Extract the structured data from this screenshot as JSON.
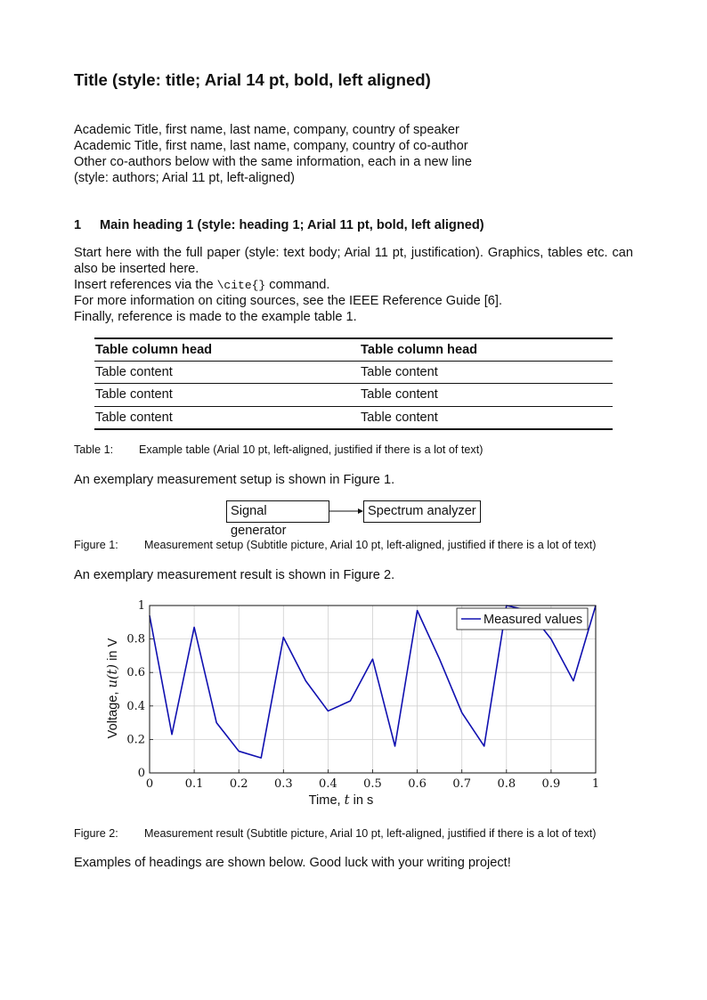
{
  "title": "Title (style: title; Arial 14 pt, bold, left aligned)",
  "authors": [
    "Academic Title, first name, last name, company, country of speaker",
    "Academic Title, first name, last name, company, country of co-author",
    "Other co-authors below with the same information, each in a new line",
    "(style: authors; Arial 11 pt, left-aligned)"
  ],
  "heading1": {
    "number": "1",
    "text": "Main heading 1 (style: heading 1; Arial 11 pt, bold, left aligned)"
  },
  "body": {
    "line1": "Start here with the full paper (style: text body; Arial 11 pt, justification). Graphics, tables etc. can",
    "line2": "also be inserted here.",
    "line3_pre": "Insert references via the ",
    "line3_code": "\\cite{}",
    "line3_post": " command.",
    "line4": "For more information on citing sources, see the IEEE Reference Guide [6].",
    "line5": "Finally, reference is made to the example table 1."
  },
  "table": {
    "headers": [
      "Table column head",
      "Table column head"
    ],
    "rows": [
      [
        "Table content",
        "Table content"
      ],
      [
        "Table content",
        "Table content"
      ],
      [
        "Table content",
        "Table content"
      ]
    ],
    "caption_label": "Table 1:",
    "caption": "Example table (Arial 10 pt, left-aligned, justified if there is a lot of text)"
  },
  "para_fig1": "An exemplary measurement setup is shown in Figure 1.",
  "diagram": {
    "box1": "Signal generator",
    "box2": "Spectrum analyzer"
  },
  "fig1_caption_label": "Figure 1:",
  "fig1_caption": "Measurement setup (Subtitle picture, Arial 10 pt, left-aligned, justified if there is a lot of text)",
  "para_fig2": "An exemplary measurement result is shown in Figure 2.",
  "chart_data": {
    "type": "line",
    "xlabel_pre": "Time, ",
    "xlabel_var": "t",
    "xlabel_post": " in s",
    "ylabel_pre": "Voltage, ",
    "ylabel_var": "u(t)",
    "ylabel_post": " in V",
    "xlim": [
      0,
      1
    ],
    "ylim": [
      0,
      1
    ],
    "xticks": [
      "0",
      "0.1",
      "0.2",
      "0.3",
      "0.4",
      "0.5",
      "0.6",
      "0.7",
      "0.8",
      "0.9",
      "1"
    ],
    "yticks": [
      "0",
      "0.2",
      "0.4",
      "0.6",
      "0.8",
      "1"
    ],
    "grid": true,
    "legend_position": "top-right",
    "series": [
      {
        "name": "Measured values",
        "color": "#1010b0",
        "x": [
          0,
          0.05,
          0.1,
          0.15,
          0.2,
          0.25,
          0.3,
          0.35,
          0.4,
          0.45,
          0.5,
          0.55,
          0.6,
          0.65,
          0.7,
          0.75,
          0.8,
          0.85,
          0.9,
          0.95,
          1
        ],
        "y": [
          0.94,
          0.23,
          0.87,
          0.3,
          0.13,
          0.09,
          0.81,
          0.55,
          0.37,
          0.43,
          0.68,
          0.16,
          0.97,
          0.68,
          0.36,
          0.16,
          1.0,
          0.97,
          0.8,
          0.55,
          1.0
        ]
      }
    ]
  },
  "fig2_caption_label": "Figure 2:",
  "fig2_caption": "Measurement result (Subtitle picture, Arial 10 pt, left-aligned, justified if there is a lot of text)",
  "closing": "Examples of headings are shown below. Good luck with your writing project!"
}
